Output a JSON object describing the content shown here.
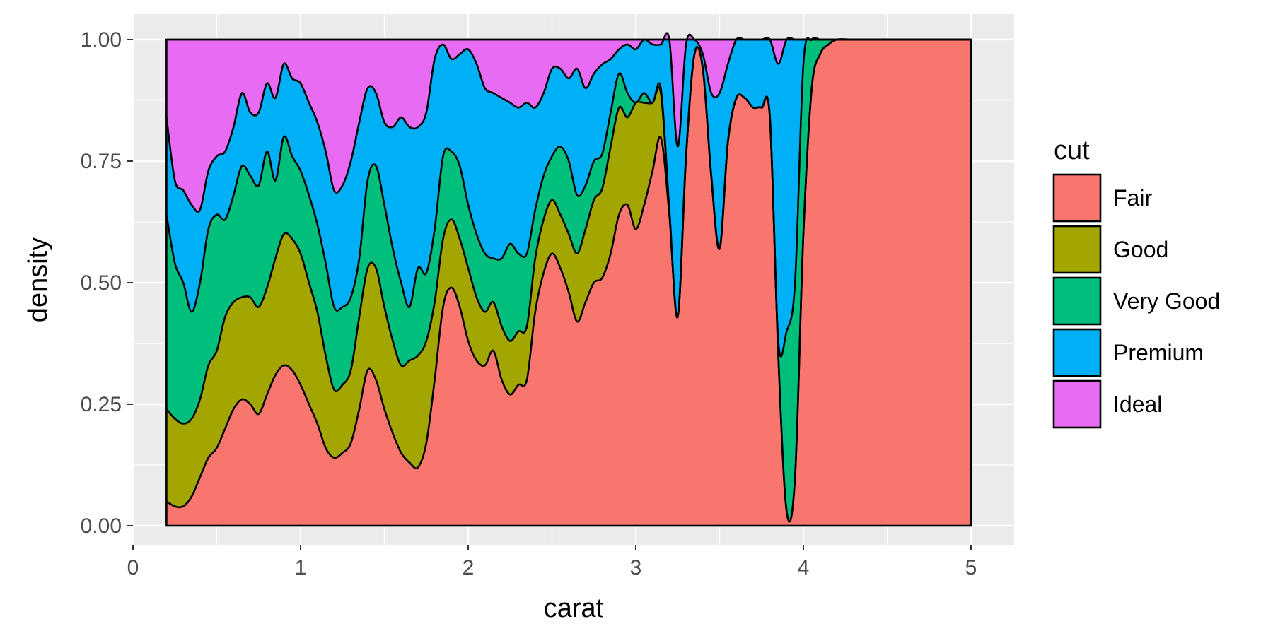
{
  "chart_data": {
    "type": "area",
    "subtype": "stacked-density-fill",
    "title": "",
    "xlabel": "carat",
    "ylabel": "density",
    "xlim": [
      0,
      5.1
    ],
    "ylim": [
      0,
      1.06
    ],
    "x_ticks": [
      0,
      1,
      2,
      3,
      4,
      5
    ],
    "y_ticks": [
      0,
      0.25,
      0.5,
      0.75,
      1.0
    ],
    "x_tick_labels": [
      "0",
      "1",
      "2",
      "3",
      "4",
      "5"
    ],
    "y_tick_labels": [
      "0.00",
      "0.25",
      "0.50",
      "0.75",
      "1.00"
    ],
    "grid": true,
    "legend": {
      "title": "cut",
      "position": "right"
    },
    "x": [
      0.2,
      0.25,
      0.3,
      0.35,
      0.4,
      0.45,
      0.5,
      0.55,
      0.6,
      0.65,
      0.7,
      0.75,
      0.8,
      0.85,
      0.9,
      0.95,
      1.0,
      1.05,
      1.1,
      1.15,
      1.2,
      1.25,
      1.3,
      1.35,
      1.4,
      1.45,
      1.5,
      1.55,
      1.6,
      1.65,
      1.7,
      1.75,
      1.8,
      1.85,
      1.9,
      1.95,
      2.0,
      2.05,
      2.1,
      2.15,
      2.2,
      2.25,
      2.3,
      2.35,
      2.4,
      2.45,
      2.5,
      2.55,
      2.6,
      2.65,
      2.7,
      2.75,
      2.8,
      2.85,
      2.9,
      2.95,
      3.0,
      3.05,
      3.1,
      3.15,
      3.2,
      3.25,
      3.3,
      3.35,
      3.4,
      3.45,
      3.5,
      3.55,
      3.6,
      3.65,
      3.7,
      3.75,
      3.8,
      3.85,
      3.9,
      3.95,
      4.0,
      4.05,
      4.1,
      4.15,
      4.2,
      4.3,
      4.5,
      5.0
    ],
    "series": [
      {
        "name": "Fair",
        "color": "#F8766D",
        "values": [
          0.05,
          0.04,
          0.04,
          0.06,
          0.1,
          0.14,
          0.16,
          0.2,
          0.24,
          0.26,
          0.25,
          0.23,
          0.27,
          0.31,
          0.33,
          0.32,
          0.29,
          0.25,
          0.21,
          0.16,
          0.14,
          0.15,
          0.17,
          0.24,
          0.32,
          0.3,
          0.24,
          0.19,
          0.15,
          0.13,
          0.12,
          0.17,
          0.3,
          0.45,
          0.49,
          0.45,
          0.38,
          0.34,
          0.33,
          0.36,
          0.3,
          0.27,
          0.29,
          0.3,
          0.44,
          0.52,
          0.56,
          0.53,
          0.48,
          0.42,
          0.46,
          0.5,
          0.5,
          0.56,
          0.64,
          0.66,
          0.61,
          0.66,
          0.73,
          0.79,
          0.64,
          0.43,
          0.76,
          0.97,
          0.94,
          0.72,
          0.57,
          0.79,
          0.88,
          0.88,
          0.86,
          0.86,
          0.84,
          0.35,
          0.03,
          0.1,
          0.6,
          0.9,
          0.97,
          0.99,
          1.0,
          1.0,
          1.0,
          1.0
        ]
      },
      {
        "name": "Good",
        "color": "#A3A500",
        "values": [
          0.19,
          0.18,
          0.17,
          0.16,
          0.16,
          0.19,
          0.2,
          0.23,
          0.22,
          0.21,
          0.22,
          0.22,
          0.22,
          0.24,
          0.27,
          0.27,
          0.27,
          0.25,
          0.23,
          0.19,
          0.14,
          0.14,
          0.15,
          0.19,
          0.21,
          0.23,
          0.21,
          0.19,
          0.18,
          0.21,
          0.23,
          0.21,
          0.16,
          0.14,
          0.14,
          0.14,
          0.15,
          0.13,
          0.11,
          0.1,
          0.11,
          0.11,
          0.11,
          0.11,
          0.11,
          0.11,
          0.11,
          0.11,
          0.12,
          0.14,
          0.15,
          0.17,
          0.18,
          0.22,
          0.22,
          0.18,
          0.26,
          0.21,
          0.14,
          0.09,
          0.01,
          0.0,
          0.0,
          0.0,
          0.0,
          0.0,
          0.0,
          0.0,
          0.0,
          0.0,
          0.0,
          0.0,
          0.0,
          0.0,
          0.0,
          0.0,
          0.0,
          0.0,
          0.0,
          0.0,
          0.0,
          0.0,
          0.0,
          0.0
        ]
      },
      {
        "name": "Very Good",
        "color": "#00BF7D",
        "values": [
          0.4,
          0.32,
          0.29,
          0.22,
          0.24,
          0.28,
          0.28,
          0.2,
          0.22,
          0.27,
          0.25,
          0.25,
          0.28,
          0.16,
          0.2,
          0.17,
          0.17,
          0.18,
          0.18,
          0.19,
          0.17,
          0.16,
          0.15,
          0.12,
          0.18,
          0.21,
          0.21,
          0.19,
          0.17,
          0.11,
          0.18,
          0.14,
          0.15,
          0.17,
          0.14,
          0.15,
          0.13,
          0.13,
          0.12,
          0.09,
          0.14,
          0.2,
          0.16,
          0.15,
          0.1,
          0.09,
          0.09,
          0.14,
          0.15,
          0.12,
          0.09,
          0.08,
          0.07,
          0.07,
          0.07,
          0.05,
          0.0,
          0.02,
          0.0,
          0.01,
          0.0,
          0.0,
          0.0,
          0.0,
          0.0,
          0.0,
          0.0,
          0.0,
          0.0,
          0.0,
          0.0,
          0.0,
          0.0,
          0.03,
          0.37,
          0.4,
          0.35,
          0.1,
          0.03,
          0.01,
          0.0,
          0.0,
          0.0,
          0.0
        ]
      },
      {
        "name": "Premium",
        "color": "#00B0F6",
        "values": [
          0.2,
          0.17,
          0.19,
          0.22,
          0.15,
          0.12,
          0.12,
          0.14,
          0.14,
          0.15,
          0.13,
          0.15,
          0.14,
          0.17,
          0.15,
          0.16,
          0.18,
          0.19,
          0.21,
          0.23,
          0.24,
          0.25,
          0.28,
          0.28,
          0.19,
          0.15,
          0.17,
          0.25,
          0.34,
          0.37,
          0.29,
          0.33,
          0.35,
          0.23,
          0.19,
          0.23,
          0.32,
          0.35,
          0.34,
          0.34,
          0.33,
          0.29,
          0.3,
          0.31,
          0.21,
          0.17,
          0.18,
          0.16,
          0.17,
          0.26,
          0.2,
          0.18,
          0.18,
          0.11,
          0.05,
          0.1,
          0.11,
          0.11,
          0.12,
          0.09,
          0.35,
          0.35,
          0.23,
          0.03,
          0.03,
          0.17,
          0.32,
          0.16,
          0.12,
          0.12,
          0.14,
          0.14,
          0.16,
          0.57,
          0.6,
          0.5,
          0.05,
          0.0,
          0.0,
          0.0,
          0.0,
          0.0,
          0.0,
          0.0
        ]
      },
      {
        "name": "Ideal",
        "color": "#E76BF3",
        "values": [
          0.16,
          0.29,
          0.31,
          0.34,
          0.35,
          0.27,
          0.24,
          0.23,
          0.18,
          0.11,
          0.15,
          0.15,
          0.09,
          0.12,
          0.05,
          0.08,
          0.09,
          0.13,
          0.17,
          0.23,
          0.31,
          0.3,
          0.25,
          0.17,
          0.1,
          0.11,
          0.17,
          0.18,
          0.16,
          0.18,
          0.18,
          0.15,
          0.04,
          0.01,
          0.04,
          0.03,
          0.02,
          0.05,
          0.1,
          0.11,
          0.12,
          0.13,
          0.14,
          0.13,
          0.14,
          0.11,
          0.06,
          0.06,
          0.08,
          0.06,
          0.1,
          0.07,
          0.05,
          0.04,
          0.02,
          0.01,
          0.02,
          0.0,
          0.01,
          0.01,
          0.0,
          0.22,
          0.01,
          0.0,
          0.03,
          0.11,
          0.11,
          0.05,
          0.0,
          0.0,
          0.0,
          0.0,
          0.0,
          0.05,
          0.0,
          0.0,
          0.0,
          0.0,
          0.0,
          0.0,
          0.0,
          0.0,
          0.0,
          0.0
        ]
      }
    ]
  },
  "colors": {
    "panel_background": "#EBEBEB",
    "grid_major": "#FFFFFF",
    "outline": "#000000"
  }
}
